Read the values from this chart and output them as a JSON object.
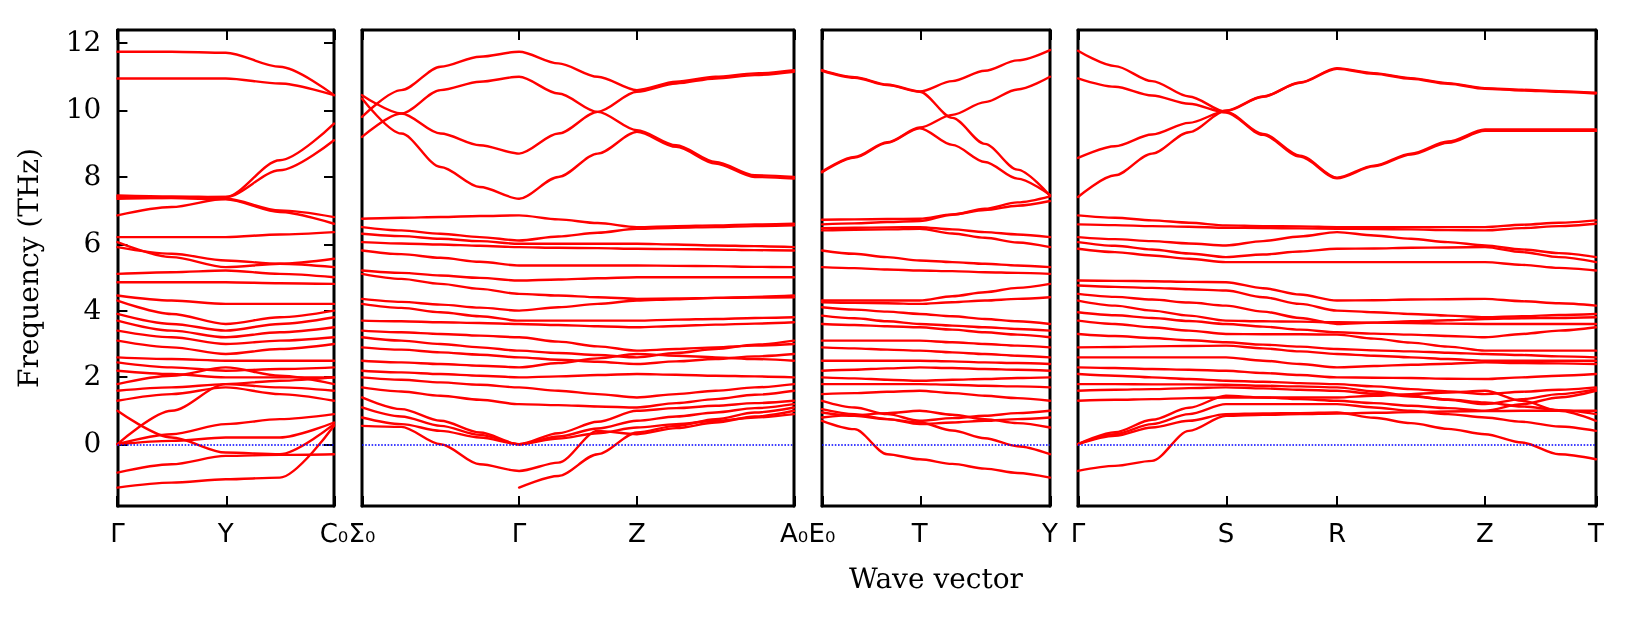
{
  "chart_data": [
    {
      "type": "line",
      "ylabel": "Frequency (THz)",
      "categories": [
        "Γ",
        null,
        "Y",
        null,
        "C₀"
      ],
      "ylim": [
        -1.85,
        12.4
      ],
      "yticks": [
        0,
        2,
        4,
        6,
        8,
        10,
        12
      ],
      "ref_lines": [
        {
          "axis": "y",
          "value": 0,
          "color": "#0000ff",
          "line_style": "dotted"
        }
      ],
      "series": [
        {
          "color": "#ff0000",
          "values": [
            11.75,
            11.75,
            11.72,
            11.3,
            10.45
          ]
        },
        {
          "color": "#ff0000",
          "values": [
            10.95,
            10.95,
            10.95,
            10.8,
            10.45
          ]
        },
        {
          "color": "#ff0000",
          "values": [
            7.45,
            7.42,
            7.4,
            8.5,
            9.6
          ]
        },
        {
          "color": "#ff0000",
          "values": [
            7.35,
            7.38,
            7.4,
            8.2,
            9.1
          ]
        },
        {
          "color": "#ff0000",
          "values": [
            6.85,
            7.1,
            7.35,
            7.0,
            6.8
          ]
        },
        {
          "color": "#ff0000",
          "values": [
            7.4,
            7.37,
            7.33,
            6.95,
            6.6
          ]
        },
        {
          "color": "#ff0000",
          "values": [
            6.2,
            6.2,
            6.2,
            6.28,
            6.35
          ]
        },
        {
          "color": "#ff0000",
          "values": [
            6.05,
            5.6,
            5.3,
            5.4,
            5.55
          ]
        },
        {
          "color": "#ff0000",
          "values": [
            5.9,
            5.7,
            5.5,
            5.4,
            5.3
          ]
        },
        {
          "color": "#ff0000",
          "values": [
            5.1,
            5.15,
            5.2,
            5.1,
            5.0
          ]
        },
        {
          "color": "#ff0000",
          "values": [
            4.85,
            4.85,
            4.85,
            4.82,
            4.8
          ]
        },
        {
          "color": "#ff0000",
          "values": [
            4.45,
            4.3,
            4.2,
            4.2,
            4.2
          ]
        },
        {
          "color": "#ff0000",
          "values": [
            4.3,
            3.9,
            3.6,
            3.8,
            4.0
          ]
        },
        {
          "color": "#ff0000",
          "values": [
            3.9,
            3.6,
            3.4,
            3.6,
            3.8
          ]
        },
        {
          "color": "#ff0000",
          "values": [
            3.7,
            3.4,
            3.2,
            3.35,
            3.5
          ]
        },
        {
          "color": "#ff0000",
          "values": [
            3.4,
            3.2,
            3.0,
            3.1,
            3.2
          ]
        },
        {
          "color": "#ff0000",
          "values": [
            3.1,
            2.9,
            2.7,
            2.85,
            3.0
          ]
        },
        {
          "color": "#ff0000",
          "values": [
            2.6,
            2.55,
            2.5,
            2.5,
            2.5
          ]
        },
        {
          "color": "#ff0000",
          "values": [
            2.45,
            2.3,
            2.2,
            2.25,
            2.3
          ]
        },
        {
          "color": "#ff0000",
          "values": [
            2.2,
            2.1,
            2.0,
            2.0,
            2.0
          ]
        },
        {
          "color": "#ff0000",
          "values": [
            1.8,
            2.05,
            2.3,
            2.05,
            1.8
          ]
        },
        {
          "color": "#ff0000",
          "values": [
            1.6,
            1.7,
            1.8,
            1.7,
            1.6
          ]
        },
        {
          "color": "#ff0000",
          "values": [
            1.3,
            1.5,
            1.7,
            1.5,
            1.3
          ]
        },
        {
          "color": "#ff0000",
          "values": [
            0,
            1.0,
            1.8,
            1.9,
            2.0
          ]
        },
        {
          "color": "#ff0000",
          "values": [
            0,
            0.3,
            0.6,
            0.75,
            0.9
          ]
        },
        {
          "color": "#ff0000",
          "values": [
            0,
            0.1,
            0.2,
            0.2,
            0.65
          ]
        },
        {
          "color": "#ff0000",
          "values": [
            1.0,
            0.2,
            -0.25,
            -0.3,
            0.6
          ]
        },
        {
          "color": "#ff0000",
          "values": [
            -0.85,
            -0.6,
            -0.35,
            -0.32,
            -0.3
          ]
        },
        {
          "color": "#ff0000",
          "values": [
            -1.3,
            -1.15,
            -1.05,
            -1.0,
            0.55
          ]
        }
      ]
    },
    {
      "type": "line",
      "tick_labels": "x",
      "categories": [
        "Σ₀",
        null,
        null,
        null,
        "Γ",
        null,
        null,
        "Z",
        null,
        null,
        null,
        "A₀"
      ],
      "ylim": [
        -1.85,
        12.4
      ],
      "ref_lines": [
        {
          "axis": "y",
          "value": 0,
          "color": "#0000ff",
          "line_style": "dotted"
        }
      ],
      "series": [
        {
          "color": "#ff0000",
          "values": [
            9.8,
            10.6,
            11.3,
            11.6,
            11.75,
            11.4,
            11.0,
            10.6,
            10.85,
            11.0,
            11.1,
            11.2
          ]
        },
        {
          "color": "#ff0000",
          "values": [
            9.2,
            9.9,
            10.6,
            10.85,
            11.0,
            10.5,
            9.95,
            9.4,
            8.95,
            8.45,
            8.05,
            8.0
          ]
        },
        {
          "color": "#ff0000",
          "values": [
            10.45,
            9.9,
            9.3,
            8.95,
            8.7,
            9.3,
            9.95,
            10.55,
            10.8,
            10.95,
            11.05,
            11.15
          ]
        },
        {
          "color": "#ff0000",
          "values": [
            10.35,
            9.3,
            8.3,
            7.7,
            7.35,
            8.0,
            8.7,
            9.35,
            8.9,
            8.4,
            8.0,
            7.95
          ]
        },
        {
          "color": "#ff0000",
          "values": [
            6.75,
            6.78,
            6.8,
            6.83,
            6.85,
            6.73,
            6.62,
            6.5,
            6.53,
            6.55,
            6.58,
            6.6
          ]
        },
        {
          "color": "#ff0000",
          "values": [
            6.5,
            6.4,
            6.3,
            6.2,
            6.1,
            6.22,
            6.33,
            6.45,
            6.48,
            6.5,
            6.53,
            6.55
          ]
        },
        {
          "color": "#ff0000",
          "values": [
            6.3,
            6.23,
            6.15,
            6.08,
            6.0,
            6.0,
            6.0,
            6.0,
            5.98,
            5.95,
            5.93,
            5.9
          ]
        },
        {
          "color": "#ff0000",
          "values": [
            6.05,
            6.01,
            5.98,
            5.94,
            5.9,
            5.88,
            5.87,
            5.85,
            5.84,
            5.83,
            5.81,
            5.8
          ]
        },
        {
          "color": "#ff0000",
          "values": [
            5.8,
            5.69,
            5.58,
            5.46,
            5.35,
            5.35,
            5.35,
            5.35,
            5.34,
            5.33,
            5.31,
            5.3
          ]
        },
        {
          "color": "#ff0000",
          "values": [
            5.2,
            5.13,
            5.05,
            4.98,
            4.9,
            4.93,
            4.97,
            5.0,
            5.0,
            5.0,
            5.0,
            5.0
          ]
        },
        {
          "color": "#ff0000",
          "values": [
            5.1,
            4.95,
            4.8,
            4.65,
            4.5,
            4.45,
            4.4,
            4.35,
            4.36,
            4.38,
            4.39,
            4.4
          ]
        },
        {
          "color": "#ff0000",
          "values": [
            4.35,
            4.26,
            4.18,
            4.09,
            4.0,
            4.1,
            4.2,
            4.3,
            4.34,
            4.38,
            4.41,
            4.45
          ]
        },
        {
          "color": "#ff0000",
          "values": [
            4.2,
            4.08,
            3.95,
            3.83,
            3.7,
            3.7,
            3.7,
            3.7,
            3.73,
            3.75,
            3.78,
            3.8
          ]
        },
        {
          "color": "#ff0000",
          "values": [
            3.7,
            3.68,
            3.65,
            3.63,
            3.6,
            3.57,
            3.53,
            3.5,
            3.54,
            3.58,
            3.61,
            3.65
          ]
        },
        {
          "color": "#ff0000",
          "values": [
            3.4,
            3.35,
            3.3,
            3.25,
            3.2,
            3.07,
            2.93,
            2.8,
            2.85,
            2.9,
            2.95,
            3.0
          ]
        },
        {
          "color": "#ff0000",
          "values": [
            3.2,
            3.1,
            3.0,
            2.9,
            2.8,
            2.73,
            2.67,
            2.6,
            2.73,
            2.85,
            2.98,
            3.1
          ]
        },
        {
          "color": "#ff0000",
          "values": [
            2.9,
            2.83,
            2.75,
            2.68,
            2.6,
            2.53,
            2.47,
            2.4,
            2.48,
            2.55,
            2.63,
            2.7
          ]
        },
        {
          "color": "#ff0000",
          "values": [
            2.5,
            2.45,
            2.4,
            2.35,
            2.3,
            2.43,
            2.57,
            2.7,
            2.65,
            2.6,
            2.55,
            2.5
          ]
        },
        {
          "color": "#ff0000",
          "values": [
            2.2,
            2.15,
            2.1,
            2.05,
            2.0,
            2.03,
            2.07,
            2.1,
            2.08,
            2.05,
            2.03,
            2.0
          ]
        },
        {
          "color": "#ff0000",
          "values": [
            2.0,
            1.93,
            1.85,
            1.78,
            1.7,
            1.6,
            1.5,
            1.4,
            1.5,
            1.6,
            1.7,
            1.8
          ]
        },
        {
          "color": "#ff0000",
          "values": [
            1.7,
            1.58,
            1.45,
            1.33,
            1.2,
            1.17,
            1.13,
            1.1,
            1.23,
            1.35,
            1.48,
            1.6
          ]
        },
        {
          "color": "#ff0000",
          "values": [
            1.4,
            1.05,
            0.7,
            0.35,
            0,
            0.33,
            0.67,
            1.0,
            1.08,
            1.15,
            1.23,
            1.3
          ]
        },
        {
          "color": "#ff0000",
          "values": [
            1.1,
            0.83,
            0.55,
            0.28,
            0,
            0.23,
            0.47,
            0.7,
            0.83,
            0.95,
            1.08,
            1.2
          ]
        },
        {
          "color": "#ff0000",
          "values": [
            0.8,
            0.6,
            0.4,
            0.2,
            0,
            0.17,
            0.33,
            0.5,
            0.6,
            0.7,
            0.8,
            0.9
          ]
        },
        {
          "color": "#ff0000",
          "values": [
            0.55,
            0.52,
            0.0,
            -0.6,
            -0.8,
            -0.55,
            0.4,
            0.3,
            0.48,
            0.65,
            0.83,
            1.0
          ]
        },
        {
          "color": "#ff0000",
          "values": [
            null,
            null,
            null,
            null,
            -1.3,
            -0.95,
            -0.3,
            0.35,
            0.55,
            0.75,
            0.95,
            1.1
          ]
        }
      ]
    },
    {
      "type": "line",
      "tick_labels": "x",
      "xlabel": "Wave vector",
      "categories": [
        "E₀",
        null,
        null,
        "T",
        null,
        null,
        null,
        "Y"
      ],
      "ylim": [
        -1.85,
        12.4
      ],
      "ref_lines": [
        {
          "axis": "y",
          "value": 0,
          "color": "#0000ff",
          "line_style": "dotted"
        }
      ],
      "series": [
        {
          "color": "#ff0000",
          "values": [
            11.2,
            10.99,
            10.77,
            10.56,
            10.87,
            11.18,
            11.49,
            11.8
          ]
        },
        {
          "color": "#ff0000",
          "values": [
            11.18,
            10.97,
            10.75,
            10.55,
            9.77,
            8.99,
            8.22,
            7.44
          ]
        },
        {
          "color": "#ff0000",
          "values": [
            8.16,
            8.6,
            9.04,
            9.48,
            9.86,
            10.24,
            10.62,
            11.0
          ]
        },
        {
          "color": "#ff0000",
          "values": [
            8.14,
            8.58,
            9.02,
            9.46,
            8.96,
            8.45,
            7.95,
            7.46
          ]
        },
        {
          "color": "#ff0000",
          "values": [
            6.72,
            6.73,
            6.74,
            6.75,
            6.88,
            7.01,
            7.14,
            7.28
          ]
        },
        {
          "color": "#ff0000",
          "values": [
            6.58,
            6.61,
            6.65,
            6.68,
            6.87,
            7.05,
            7.24,
            7.42
          ]
        },
        {
          "color": "#ff0000",
          "values": [
            6.47,
            6.48,
            6.49,
            6.5,
            6.43,
            6.35,
            6.28,
            6.2
          ]
        },
        {
          "color": "#ff0000",
          "values": [
            6.4,
            6.42,
            6.43,
            6.45,
            6.31,
            6.18,
            6.04,
            5.9
          ]
        },
        {
          "color": "#ff0000",
          "values": [
            5.8,
            5.7,
            5.6,
            5.5,
            5.45,
            5.4,
            5.35,
            5.3
          ]
        },
        {
          "color": "#ff0000",
          "values": [
            5.3,
            5.27,
            5.23,
            5.2,
            5.18,
            5.15,
            5.13,
            5.1
          ]
        },
        {
          "color": "#ff0000",
          "values": [
            4.3,
            4.3,
            4.3,
            4.3,
            4.43,
            4.55,
            4.68,
            4.8
          ]
        },
        {
          "color": "#ff0000",
          "values": [
            4.25,
            4.23,
            4.22,
            4.2,
            4.25,
            4.3,
            4.35,
            4.4
          ]
        },
        {
          "color": "#ff0000",
          "values": [
            4.1,
            4.03,
            3.97,
            3.9,
            3.83,
            3.75,
            3.68,
            3.6
          ]
        },
        {
          "color": "#ff0000",
          "values": [
            3.85,
            3.77,
            3.68,
            3.6,
            3.55,
            3.5,
            3.45,
            3.4
          ]
        },
        {
          "color": "#ff0000",
          "values": [
            3.6,
            3.57,
            3.53,
            3.5,
            3.43,
            3.35,
            3.28,
            3.2
          ]
        },
        {
          "color": "#ff0000",
          "values": [
            3.1,
            3.1,
            3.1,
            3.1,
            3.05,
            3.0,
            2.95,
            2.9
          ]
        },
        {
          "color": "#ff0000",
          "values": [
            2.9,
            2.87,
            2.83,
            2.8,
            2.75,
            2.7,
            2.65,
            2.6
          ]
        },
        {
          "color": "#ff0000",
          "values": [
            2.5,
            2.5,
            2.5,
            2.5,
            2.48,
            2.45,
            2.43,
            2.4
          ]
        },
        {
          "color": "#ff0000",
          "values": [
            2.2,
            2.23,
            2.27,
            2.3,
            2.28,
            2.25,
            2.23,
            2.2
          ]
        },
        {
          "color": "#ff0000",
          "values": [
            2.0,
            1.97,
            1.93,
            1.9,
            1.93,
            1.95,
            1.98,
            2.0
          ]
        },
        {
          "color": "#ff0000",
          "values": [
            1.8,
            1.8,
            1.8,
            1.8,
            1.78,
            1.75,
            1.73,
            1.7
          ]
        },
        {
          "color": "#ff0000",
          "values": [
            1.5,
            1.53,
            1.57,
            1.6,
            1.53,
            1.45,
            1.38,
            1.3
          ]
        },
        {
          "color": "#ff0000",
          "values": [
            1.3,
            1.1,
            0.9,
            0.7,
            0.78,
            0.85,
            0.93,
            1.0
          ]
        },
        {
          "color": "#ff0000",
          "values": [
            1.05,
            0.9,
            0.75,
            0.6,
            0.65,
            0.7,
            0.75,
            0.8
          ]
        },
        {
          "color": "#ff0000",
          "values": [
            0.8,
            0.87,
            0.93,
            1.0,
            0.88,
            0.75,
            0.63,
            0.5
          ]
        },
        {
          "color": "#ff0000",
          "values": [
            0.7,
            0.45,
            -0.3,
            -0.45,
            -0.59,
            -0.73,
            -0.86,
            -1.0
          ]
        },
        {
          "color": "#ff0000",
          "values": [
            0.95,
            0.85,
            0.75,
            0.65,
            0.41,
            0.18,
            -0.06,
            -0.3
          ]
        }
      ]
    },
    {
      "type": "line",
      "tick_labels": "x",
      "categories": [
        "Γ",
        null,
        null,
        null,
        "S",
        null,
        null,
        "R",
        null,
        null,
        null,
        "Z",
        null,
        null,
        "T"
      ],
      "ylim": [
        -1.85,
        12.4
      ],
      "ref_lines": [
        {
          "axis": "y",
          "value": 0,
          "color": "#0000ff",
          "line_style": "dotted"
        }
      ],
      "series": [
        {
          "color": "#ff0000",
          "values": [
            11.78,
            11.32,
            10.87,
            10.41,
            9.95,
            9.29,
            8.64,
            7.98,
            8.34,
            8.7,
            9.06,
            9.42,
            9.42,
            9.42,
            9.42
          ]
        },
        {
          "color": "#ff0000",
          "values": [
            10.95,
            10.7,
            10.44,
            10.19,
            9.93,
            9.26,
            8.61,
            7.96,
            8.32,
            8.67,
            9.02,
            9.38,
            9.38,
            9.38,
            9.38
          ]
        },
        {
          "color": "#ff0000",
          "values": [
            8.57,
            8.92,
            9.27,
            9.62,
            9.97,
            10.4,
            10.83,
            11.26,
            11.11,
            10.96,
            10.81,
            10.66,
            10.61,
            10.57,
            10.52
          ]
        },
        {
          "color": "#ff0000",
          "values": [
            7.4,
            8.05,
            8.7,
            9.34,
            9.99,
            10.41,
            10.82,
            11.24,
            11.09,
            10.94,
            10.79,
            10.64,
            10.59,
            10.55,
            10.5
          ]
        },
        {
          "color": "#ff0000",
          "values": [
            6.85,
            6.78,
            6.7,
            6.63,
            6.55,
            6.53,
            6.52,
            6.5,
            6.5,
            6.5,
            6.5,
            6.5,
            6.57,
            6.63,
            6.7
          ]
        },
        {
          "color": "#ff0000",
          "values": [
            6.58,
            6.56,
            6.53,
            6.51,
            6.48,
            6.47,
            6.46,
            6.45,
            6.44,
            6.43,
            6.41,
            6.4,
            6.47,
            6.53,
            6.6
          ]
        },
        {
          "color": "#ff0000",
          "values": [
            6.2,
            6.14,
            6.08,
            6.01,
            5.95,
            6.08,
            6.22,
            6.35,
            6.25,
            6.15,
            6.05,
            5.95,
            5.83,
            5.72,
            5.6
          ]
        },
        {
          "color": "#ff0000",
          "values": [
            6.05,
            5.94,
            5.83,
            5.71,
            5.6,
            5.68,
            5.77,
            5.85,
            5.86,
            5.88,
            5.89,
            5.9,
            5.75,
            5.6,
            5.45
          ]
        },
        {
          "color": "#ff0000",
          "values": [
            5.85,
            5.75,
            5.65,
            5.55,
            5.45,
            5.45,
            5.45,
            5.45,
            5.45,
            5.45,
            5.45,
            5.45,
            5.37,
            5.28,
            5.2
          ]
        },
        {
          "color": "#ff0000",
          "values": [
            4.9,
            4.89,
            4.88,
            4.86,
            4.85,
            4.67,
            4.48,
            4.3,
            4.31,
            4.33,
            4.34,
            4.35,
            4.28,
            4.22,
            4.15
          ]
        },
        {
          "color": "#ff0000",
          "values": [
            4.75,
            4.71,
            4.68,
            4.64,
            4.6,
            4.4,
            4.2,
            4.0,
            3.95,
            3.9,
            3.85,
            3.8,
            3.83,
            3.87,
            3.9
          ]
        },
        {
          "color": "#ff0000",
          "values": [
            4.5,
            4.41,
            4.33,
            4.24,
            4.15,
            3.97,
            3.78,
            3.6,
            3.64,
            3.68,
            3.71,
            3.75,
            3.77,
            3.78,
            3.8
          ]
        },
        {
          "color": "#ff0000",
          "values": [
            4.3,
            4.15,
            4.0,
            3.85,
            3.7,
            3.68,
            3.67,
            3.65,
            3.64,
            3.63,
            3.61,
            3.6,
            3.6,
            3.6,
            3.6
          ]
        },
        {
          "color": "#ff0000",
          "values": [
            3.95,
            3.86,
            3.78,
            3.69,
            3.6,
            3.52,
            3.43,
            3.35,
            3.31,
            3.28,
            3.24,
            3.2,
            3.3,
            3.4,
            3.5
          ]
        },
        {
          "color": "#ff0000",
          "values": [
            3.7,
            3.6,
            3.5,
            3.4,
            3.3,
            3.29,
            3.29,
            3.28,
            3.16,
            3.04,
            2.92,
            2.8,
            2.8,
            2.8,
            2.8
          ]
        },
        {
          "color": "#ff0000",
          "values": [
            3.3,
            3.24,
            3.18,
            3.11,
            3.05,
            2.98,
            2.92,
            2.85,
            2.81,
            2.78,
            2.74,
            2.7,
            2.67,
            2.63,
            2.6
          ]
        },
        {
          "color": "#ff0000",
          "values": [
            2.9,
            2.91,
            2.93,
            2.94,
            2.95,
            2.87,
            2.78,
            2.7,
            2.65,
            2.6,
            2.55,
            2.5,
            2.5,
            2.5,
            2.5
          ]
        },
        {
          "color": "#ff0000",
          "values": [
            2.6,
            2.6,
            2.6,
            2.6,
            2.6,
            2.5,
            2.4,
            2.3,
            2.34,
            2.38,
            2.41,
            2.45,
            2.43,
            2.42,
            2.4
          ]
        },
        {
          "color": "#ff0000",
          "values": [
            2.3,
            2.28,
            2.25,
            2.23,
            2.2,
            2.13,
            2.07,
            2.0,
            1.99,
            1.98,
            1.96,
            1.95,
            2.0,
            2.05,
            2.1
          ]
        },
        {
          "color": "#ff0000",
          "values": [
            2.1,
            2.05,
            2.0,
            1.95,
            1.9,
            1.87,
            1.83,
            1.8,
            1.73,
            1.65,
            1.58,
            1.5,
            1.57,
            1.63,
            1.7
          ]
        },
        {
          "color": "#ff0000",
          "values": [
            1.8,
            1.8,
            1.79,
            1.79,
            1.78,
            1.75,
            1.73,
            1.7,
            1.58,
            1.45,
            1.33,
            1.2,
            1.35,
            1.5,
            1.65
          ]
        },
        {
          "color": "#ff0000",
          "values": [
            1.6,
            1.63,
            1.65,
            1.68,
            1.7,
            1.67,
            1.63,
            1.6,
            1.51,
            1.43,
            1.34,
            1.25,
            1.13,
            1.02,
            0.9
          ]
        },
        {
          "color": "#ff0000",
          "values": [
            1.3,
            1.33,
            1.35,
            1.38,
            1.4,
            1.4,
            1.4,
            1.4,
            1.45,
            1.5,
            1.55,
            1.6,
            1.3,
            1.0,
            0.7
          ]
        },
        {
          "color": "#ff0000",
          "values": [
            0,
            0.36,
            0.73,
            1.09,
            1.45,
            1.4,
            1.35,
            1.3,
            1.23,
            1.15,
            1.08,
            1.0,
            1.2,
            1.4,
            1.6
          ]
        },
        {
          "color": "#ff0000",
          "values": [
            0,
            0.3,
            0.6,
            0.9,
            1.2,
            1.2,
            1.2,
            1.2,
            1.1,
            1.0,
            0.9,
            0.8,
            0.67,
            0.53,
            0.4
          ]
        },
        {
          "color": "#ff0000",
          "values": [
            0,
            0.25,
            0.5,
            0.7,
            0.9,
            0.92,
            0.93,
            0.95,
            0.79,
            0.63,
            0.46,
            0.3,
            0.05,
            -0.3,
            -0.45
          ]
        },
        {
          "color": "#ff0000",
          "values": [
            -0.8,
            -0.65,
            -0.5,
            0.4,
            0.85,
            0.88,
            0.9,
            0.92,
            0.94,
            0.96,
            0.98,
            0.99,
            1.0,
            1.0,
            1.0
          ]
        }
      ]
    }
  ]
}
